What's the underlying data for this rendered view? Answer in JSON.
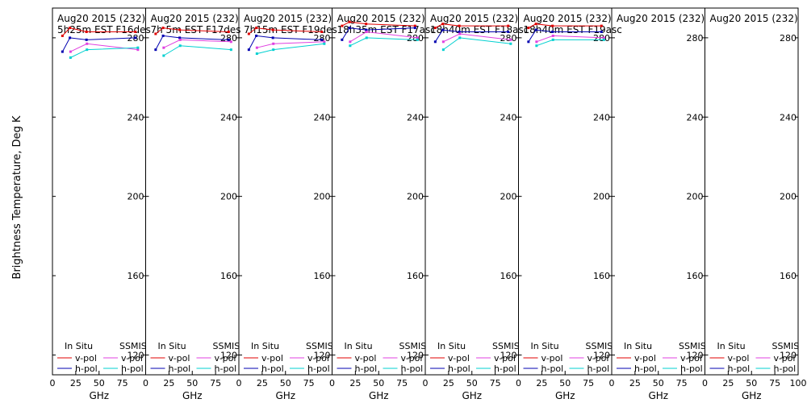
{
  "chart_data": {
    "type": "line",
    "ylabel": "Brightness Temperature, Deg K",
    "xlabel": "GHz",
    "xlim": [
      0,
      100
    ],
    "ylim": [
      110,
      295
    ],
    "x_ticks": [
      0,
      25,
      50,
      75,
      100
    ],
    "x_tick_labels": [
      "0",
      "25",
      "50",
      "75",
      "100"
    ],
    "y_ticks": [
      120,
      160,
      200,
      240,
      280
    ],
    "legend": {
      "in_situ_title": "In Situ",
      "ssmis_title": "SSMIS",
      "vpol": "v-pol",
      "hpol": "h-pol"
    },
    "colors": {
      "insitu_v": "#e00000",
      "insitu_h": "#0000b0",
      "ssmis_v": "#e040e0",
      "ssmis_h": "#00d0d0"
    },
    "panels": [
      {
        "title1": "Aug20 2015 (232)",
        "title2": "5h25m  EST  F16des",
        "insitu_v": {
          "x": [
            10.7,
            18.7,
            36.5,
            89
          ],
          "y": [
            281,
            285,
            283,
            283
          ]
        },
        "insitu_h": {
          "x": [
            10.7,
            18.7,
            36.5,
            89
          ],
          "y": [
            273,
            280,
            279,
            280
          ]
        },
        "ssmis_v": {
          "x": [
            19.35,
            37,
            91.655
          ],
          "y": [
            273,
            277,
            274
          ]
        },
        "ssmis_h": {
          "x": [
            19.35,
            37,
            91.655
          ],
          "y": [
            270,
            274,
            275
          ]
        }
      },
      {
        "title1": "Aug20 2015 (232)",
        "title2": "7h 5m  EST  F17des",
        "insitu_v": {
          "x": [
            10.7,
            18.7,
            36.5,
            89
          ],
          "y": [
            282,
            285,
            284,
            283
          ]
        },
        "insitu_h": {
          "x": [
            10.7,
            18.7,
            36.5,
            89
          ],
          "y": [
            274,
            281,
            280,
            279
          ]
        },
        "ssmis_v": {
          "x": [
            19.35,
            37,
            91.655
          ],
          "y": [
            275,
            279,
            278
          ]
        },
        "ssmis_h": {
          "x": [
            19.35,
            37,
            91.655
          ],
          "y": [
            271,
            276,
            274
          ]
        }
      },
      {
        "title1": "Aug20 2015 (232)",
        "title2": "7h15m  EST  F19des",
        "insitu_v": {
          "x": [
            10.7,
            18.7,
            36.5,
            89
          ],
          "y": [
            282,
            285,
            284,
            283
          ]
        },
        "insitu_h": {
          "x": [
            10.7,
            18.7,
            36.5,
            89
          ],
          "y": [
            274,
            281,
            280,
            279
          ]
        },
        "ssmis_v": {
          "x": [
            19.35,
            37,
            91.655
          ],
          "y": [
            275,
            277,
            278
          ]
        },
        "ssmis_h": {
          "x": [
            19.35,
            37,
            91.655
          ],
          "y": [
            272,
            274,
            277
          ]
        }
      },
      {
        "title1": "Aug20 2015 (232)",
        "title2": "18h35m  EST  F17asc",
        "insitu_v": {
          "x": [
            10.7,
            18.7,
            36.5,
            89
          ],
          "y": [
            286,
            288,
            287,
            286
          ]
        },
        "insitu_h": {
          "x": [
            10.7,
            18.7,
            36.5,
            89
          ],
          "y": [
            279,
            285,
            284,
            285
          ]
        },
        "ssmis_v": {
          "x": [
            19.35,
            37,
            91.655
          ],
          "y": [
            278,
            283,
            280
          ]
        },
        "ssmis_h": {
          "x": [
            19.35,
            37,
            91.655
          ],
          "y": [
            276,
            280,
            279
          ]
        }
      },
      {
        "title1": "Aug20 2015 (232)",
        "title2": "18h40m  EST  F18asc",
        "insitu_v": {
          "x": [
            10.7,
            18.7,
            36.5,
            89
          ],
          "y": [
            285,
            287,
            286,
            286
          ]
        },
        "insitu_h": {
          "x": [
            10.7,
            18.7,
            36.5,
            89
          ],
          "y": [
            278,
            284,
            283,
            283
          ]
        },
        "ssmis_v": {
          "x": [
            19.35,
            37,
            91.655
          ],
          "y": [
            278,
            282,
            279
          ]
        },
        "ssmis_h": {
          "x": [
            19.35,
            37,
            91.655
          ],
          "y": [
            274,
            280,
            277
          ]
        }
      },
      {
        "title1": "Aug20 2015 (232)",
        "title2": "18h40m  EST  F19asc",
        "insitu_v": {
          "x": [
            10.7,
            18.7,
            36.5,
            89
          ],
          "y": [
            285,
            287,
            286,
            286
          ]
        },
        "insitu_h": {
          "x": [
            10.7,
            18.7,
            36.5,
            89
          ],
          "y": [
            278,
            284,
            283,
            283
          ]
        },
        "ssmis_v": {
          "x": [
            19.35,
            37,
            91.655
          ],
          "y": [
            278,
            281,
            280
          ]
        },
        "ssmis_h": {
          "x": [
            19.35,
            37,
            91.655
          ],
          "y": [
            276,
            279,
            279
          ]
        }
      },
      {
        "title1": "Aug20 2015 (232)",
        "title2": "",
        "insitu_v": {
          "x": [],
          "y": []
        },
        "insitu_h": {
          "x": [],
          "y": []
        },
        "ssmis_v": {
          "x": [],
          "y": []
        },
        "ssmis_h": {
          "x": [],
          "y": []
        }
      },
      {
        "title1": "Aug20 2015 (232)",
        "title2": "",
        "insitu_v": {
          "x": [],
          "y": []
        },
        "insitu_h": {
          "x": [],
          "y": []
        },
        "ssmis_v": {
          "x": [],
          "y": []
        },
        "ssmis_h": {
          "x": [],
          "y": []
        }
      }
    ]
  }
}
